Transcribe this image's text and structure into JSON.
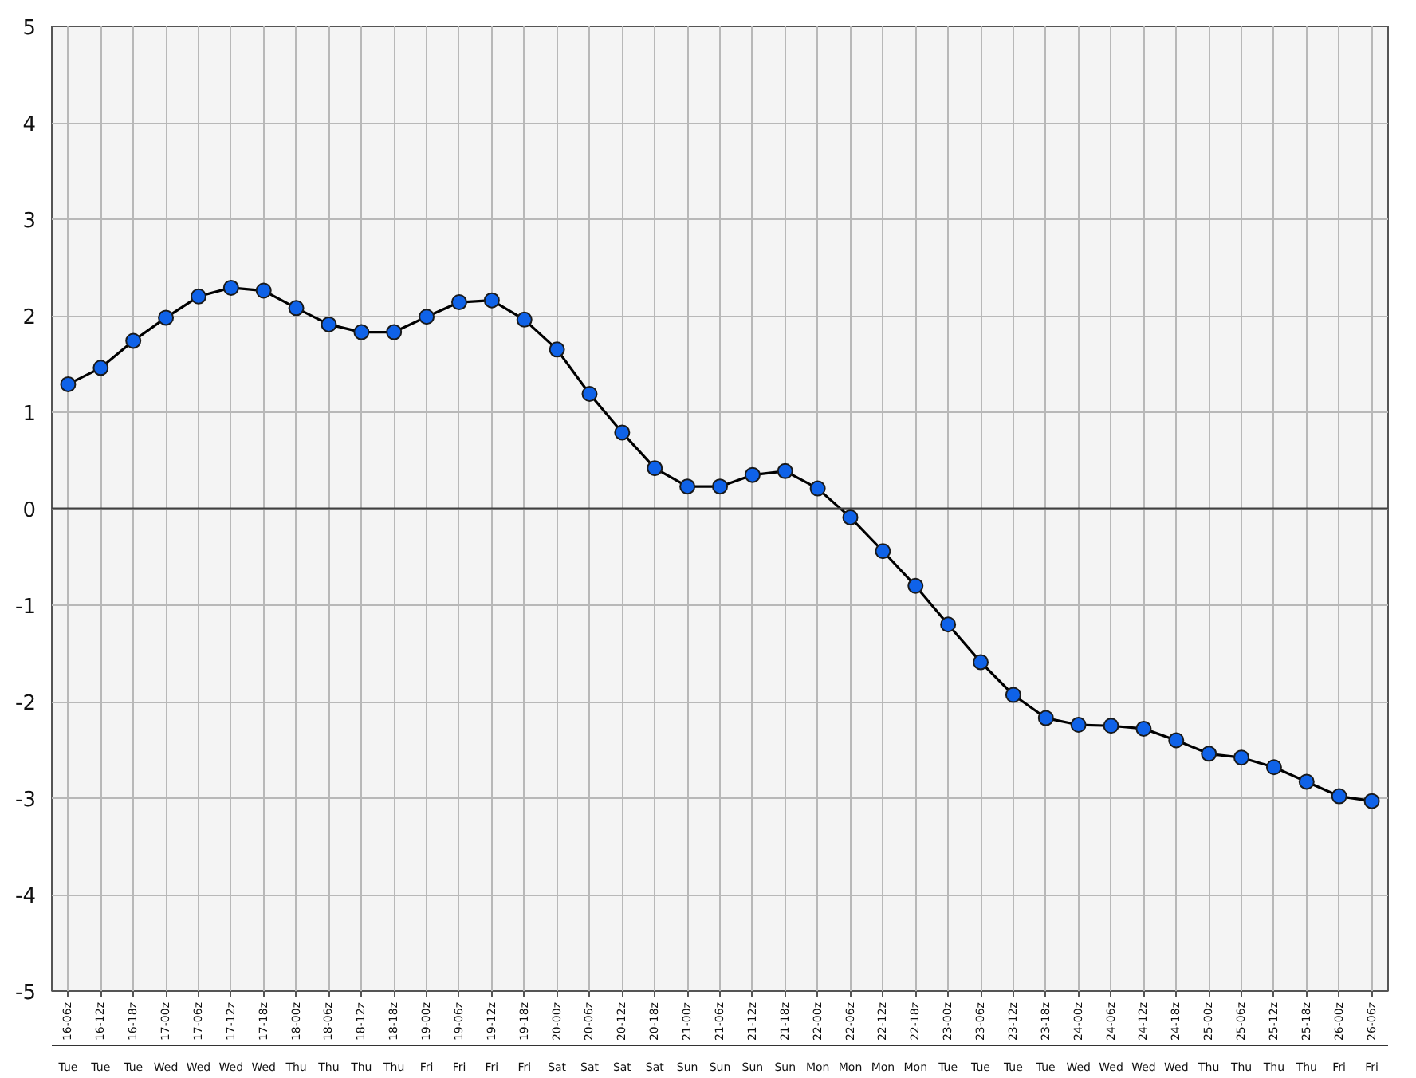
{
  "chart_data": {
    "type": "line",
    "categories": [
      "16-06z\nTue",
      "16-12z\nTue",
      "16-18z\nTue",
      "17-00z\nWed",
      "17-06z\nWed",
      "17-12z\nWed",
      "17-18z\nWed",
      "18-00z\nThu",
      "18-06z\nThu",
      "18-12z\nThu",
      "18-18z\nThu",
      "19-00z\nFri",
      "19-06z\nFri",
      "19-12z\nFri",
      "19-18z\nFri",
      "20-00z\nSat",
      "20-06z\nSat",
      "20-12z\nSat",
      "20-18z\nSat",
      "21-00z\nSun",
      "21-06z\nSun",
      "21-12z\nSun",
      "21-18z\nSun",
      "22-00z\nMon",
      "22-06z\nMon",
      "22-12z\nMon",
      "22-18z\nMon",
      "23-00z\nTue",
      "23-06z\nTue",
      "23-12z\nTue",
      "23-18z\nTue",
      "24-00z\nWed",
      "24-06z\nWed",
      "24-12z\nWed",
      "24-18z\nWed",
      "25-00z\nThu",
      "25-06z\nThu",
      "25-12z\nThu",
      "25-18z\nThu",
      "26-00z\nFri",
      "26-06z\nFri"
    ],
    "series": [
      {
        "color": "#0f62e8",
        "values": [
          1.29,
          1.46,
          1.74,
          1.98,
          2.2,
          2.29,
          2.26,
          2.08,
          1.91,
          1.83,
          1.83,
          1.99,
          2.14,
          2.16,
          1.96,
          1.65,
          1.19,
          0.79,
          0.42,
          0.23,
          0.23,
          0.35,
          0.39,
          0.21,
          -0.09,
          -0.44,
          -0.8,
          -1.2,
          -1.59,
          -1.93,
          -2.17,
          -2.24,
          -2.25,
          -2.28,
          -2.4,
          -2.54,
          -2.58,
          -2.68,
          -2.83,
          -2.98,
          -3.03
        ]
      }
    ],
    "ylim": [
      -5,
      5
    ],
    "yticks": [
      -5,
      -4,
      -3,
      -2,
      -1,
      0,
      1,
      2,
      3,
      4,
      5
    ],
    "ref_lines": [
      {
        "axis": "y",
        "value": 0,
        "color": "#404040"
      }
    ],
    "grid": true,
    "marker": "circle",
    "line_style": "solid"
  }
}
